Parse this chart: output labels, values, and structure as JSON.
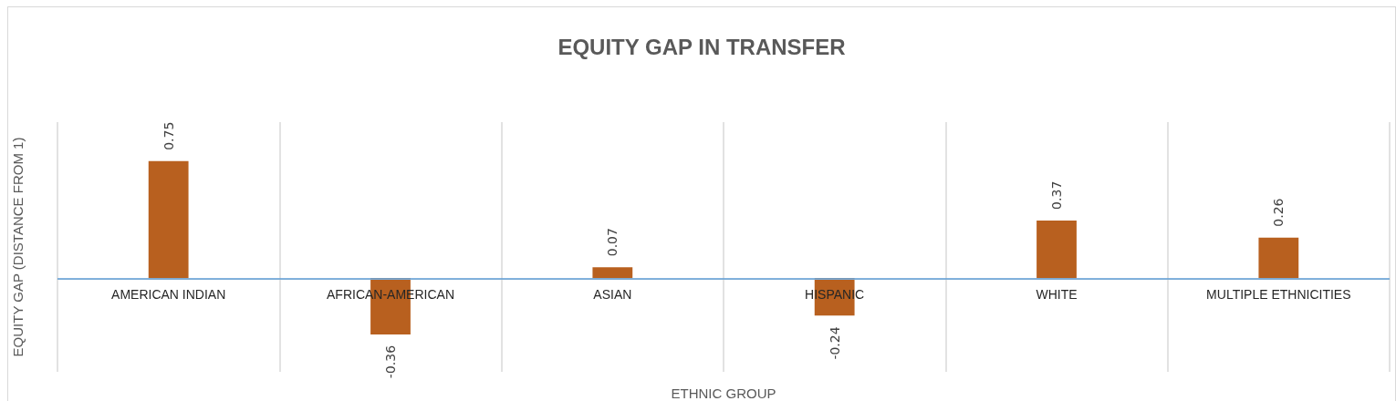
{
  "chart_data": {
    "type": "bar",
    "title": "EQUITY GAP IN TRANSFER",
    "xlabel": "ETHNIC GROUP",
    "ylabel": "EQUITY GAP (DISTANCE FROM 1)",
    "categories": [
      "AMERICAN INDIAN",
      "AFRICAN-AMERICAN",
      "ASIAN",
      "HISPANIC",
      "WHITE",
      "MULTIPLE ETHNICITIES"
    ],
    "values": [
      0.75,
      -0.36,
      0.07,
      -0.24,
      0.37,
      0.26
    ],
    "color": "#b8601f",
    "ylim": [
      -0.6,
      1.0
    ],
    "data_labels": true,
    "grid": "x",
    "tick_labels": "x",
    "ref_lines": [
      {
        "axis": "y",
        "value": 0,
        "color": "#5b9bd5"
      }
    ]
  }
}
